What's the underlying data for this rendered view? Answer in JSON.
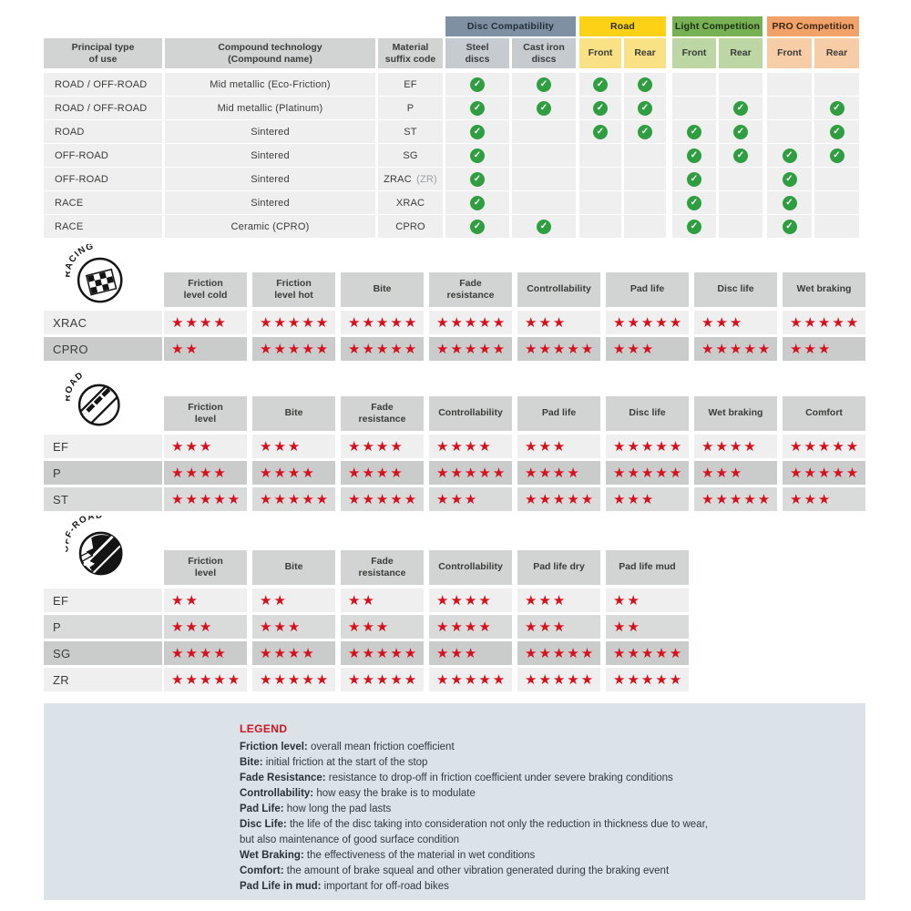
{
  "chart_data": [
    {
      "type": "table",
      "name": "compound-compatibility",
      "column_groups": [
        {
          "label": "Disc Compatibility",
          "color": "#7e90a1"
        },
        {
          "label": "Road",
          "color": "#fdd116"
        },
        {
          "label": "Light Competition",
          "color": "#76b254"
        },
        {
          "label": "PRO Competition",
          "color": "#f0a269"
        }
      ],
      "columns": [
        "Principal type\nof use",
        "Compound technology\n(Compound name)",
        "Material\nsuffix code",
        "Steel\ndiscs",
        "Cast iron\ndiscs",
        "Front",
        "Rear",
        "Front",
        "Rear",
        "Front",
        "Rear"
      ],
      "rows": [
        {
          "use": "ROAD / OFF-ROAD",
          "compound": "Mid metallic (Eco-Friction)",
          "code": "EF",
          "code_note": "",
          "checks": [
            true,
            true,
            true,
            true,
            false,
            false,
            false,
            false
          ]
        },
        {
          "use": "ROAD / OFF-ROAD",
          "compound": "Mid metallic (Platinum)",
          "code": "P",
          "code_note": "",
          "checks": [
            true,
            true,
            true,
            true,
            false,
            true,
            false,
            true
          ]
        },
        {
          "use": "ROAD",
          "compound": "Sintered",
          "code": "ST",
          "code_note": "",
          "checks": [
            true,
            false,
            true,
            true,
            true,
            true,
            false,
            true
          ]
        },
        {
          "use": "OFF-ROAD",
          "compound": "Sintered",
          "code": "SG",
          "code_note": "",
          "checks": [
            true,
            false,
            false,
            false,
            true,
            true,
            true,
            true
          ]
        },
        {
          "use": "OFF-ROAD",
          "compound": "Sintered",
          "code": "ZRAC",
          "code_note": "(ZR)",
          "checks": [
            true,
            false,
            false,
            false,
            true,
            false,
            true,
            false
          ]
        },
        {
          "use": "RACE",
          "compound": "Sintered",
          "code": "XRAC",
          "code_note": "",
          "checks": [
            true,
            false,
            false,
            false,
            true,
            false,
            true,
            false
          ]
        },
        {
          "use": "RACE",
          "compound": "Ceramic (CPRO)",
          "code": "CPRO",
          "code_note": "",
          "checks": [
            true,
            true,
            false,
            false,
            true,
            false,
            true,
            false
          ]
        }
      ]
    },
    {
      "type": "table",
      "name": "racing-ratings",
      "section": "RACING",
      "icon": "checkered-flag-icon",
      "rating_scale": "stars 0-5",
      "columns": [
        "Friction\nlevel cold",
        "Friction\nlevel hot",
        "Bite",
        "Fade\nresistance",
        "Controllability",
        "Pad life",
        "Disc life",
        "Wet braking"
      ],
      "rows": [
        {
          "label": "XRAC",
          "shade": "light",
          "ratings": [
            4,
            5,
            5,
            5,
            3,
            5,
            3,
            5
          ]
        },
        {
          "label": "CPRO",
          "shade": "dark",
          "ratings": [
            2,
            5,
            5,
            5,
            5,
            3,
            5,
            3
          ]
        }
      ]
    },
    {
      "type": "table",
      "name": "road-ratings",
      "section": "ROAD",
      "icon": "road-icon",
      "rating_scale": "stars 0-5",
      "columns": [
        "Friction\nlevel",
        "Bite",
        "Fade\nresistance",
        "Controllability",
        "Pad life",
        "Disc life",
        "Wet braking",
        "Comfort"
      ],
      "rows": [
        {
          "label": "EF",
          "shade": "light",
          "ratings": [
            3,
            3,
            4,
            4,
            3,
            5,
            4,
            5
          ]
        },
        {
          "label": "P",
          "shade": "dark",
          "ratings": [
            4,
            4,
            4,
            5,
            4,
            5,
            3,
            5
          ]
        },
        {
          "label": "ST",
          "shade": "medium",
          "ratings": [
            5,
            5,
            5,
            3,
            5,
            3,
            5,
            3
          ]
        }
      ]
    },
    {
      "type": "table",
      "name": "offroad-ratings",
      "section": "OFF-ROAD",
      "icon": "mud-splatter-icon",
      "rating_scale": "stars 0-5",
      "columns": [
        "Friction\nlevel",
        "Bite",
        "Fade\nresistance",
        "Controllability",
        "Pad life dry",
        "Pad life mud"
      ],
      "rows": [
        {
          "label": "EF",
          "shade": "light",
          "ratings": [
            2,
            2,
            2,
            4,
            3,
            2
          ]
        },
        {
          "label": "P",
          "shade": "medium",
          "ratings": [
            3,
            3,
            3,
            4,
            3,
            2
          ]
        },
        {
          "label": "SG",
          "shade": "dark",
          "ratings": [
            4,
            4,
            5,
            3,
            5,
            5
          ]
        },
        {
          "label": "ZR",
          "shade": "light",
          "ratings": [
            5,
            5,
            5,
            5,
            5,
            5
          ]
        }
      ]
    }
  ],
  "legend": {
    "title": "LEGEND",
    "items": [
      {
        "term": "Friction level:",
        "desc": "overall mean friction coefficient"
      },
      {
        "term": "Bite:",
        "desc": "initial friction at the start of the stop"
      },
      {
        "term": "Fade Resistance:",
        "desc": "resistance to drop-off in friction coefficient under severe braking conditions"
      },
      {
        "term": "Controllability:",
        "desc": "how easy the brake is to modulate"
      },
      {
        "term": "Pad Life:",
        "desc": "how long the pad lasts"
      },
      {
        "term": "Disc Life:",
        "desc": "the life of the disc taking into consideration not only the reduction in thickness due to wear,"
      },
      {
        "term": "",
        "desc": "but also maintenance of good surface condition"
      },
      {
        "term": "Wet Braking:",
        "desc": "the effectiveness of the material in wet conditions"
      },
      {
        "term": "Comfort:",
        "desc": "the amount of brake squeal and other vibration generated during the braking event"
      },
      {
        "term": "Pad Life in mud:",
        "desc": "important for off-road bikes"
      }
    ]
  },
  "icons": {
    "check": "✓",
    "star": "★"
  },
  "colors": {
    "star_red": "#d6101f",
    "check_green": "#2f9e41",
    "header_gray": "#d2d4d3",
    "disc_group": "#7e90a1",
    "road_group": "#fdd116",
    "light_competition_group": "#76b254",
    "pro_competition_group": "#f0a269",
    "legend_bg": "#dbe3e9"
  }
}
